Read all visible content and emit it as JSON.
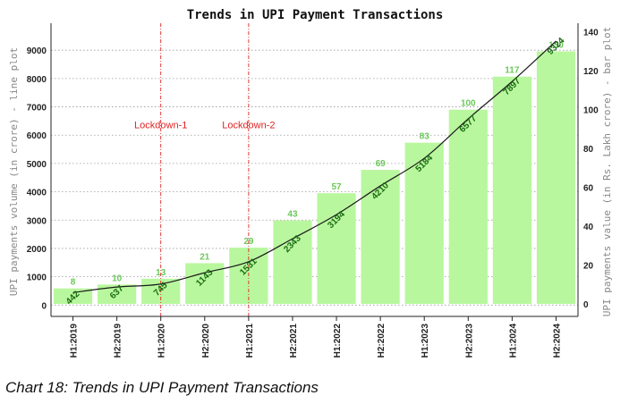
{
  "caption": "Chart 18: Trends in UPI Payment Transactions",
  "chart_data": {
    "type": "bar",
    "title": "Trends in UPI Payment Transactions",
    "categories": [
      "H1:2019",
      "H2:2019",
      "H1:2020",
      "H2:2020",
      "H1:2021",
      "H2:2021",
      "H1:2022",
      "H2:2022",
      "H1:2023",
      "H2:2023",
      "H1:2024",
      "H2:2024"
    ],
    "series": [
      {
        "name": "UPI payments value (in Rs. Lakh crore) - bar plot",
        "type": "bar",
        "axis": "right",
        "values": [
          8,
          10,
          13,
          21,
          29,
          43,
          57,
          69,
          83,
          100,
          117,
          130
        ]
      },
      {
        "name": "UPI payments volume (in crore) - line plot",
        "type": "line",
        "axis": "left",
        "values": [
          442,
          637,
          745,
          1143,
          1531,
          2343,
          3194,
          4210,
          5184,
          6577,
          7897,
          9324
        ]
      }
    ],
    "ylabel_left": "UPI payments volume (in crore) - line plot",
    "ylabel_right": "UPI payments value (in Rs. Lakh crore) - bar plot",
    "ylim_left": [
      -400,
      9700
    ],
    "ylim_right": [
      -6.4,
      140.8
    ],
    "yticks_left": [
      "0",
      "1000",
      "2000",
      "3000",
      "4000",
      "5000",
      "6000",
      "7000",
      "8000",
      "9000"
    ],
    "yticks_right": [
      "0",
      "20",
      "40",
      "60",
      "80",
      "100",
      "120",
      "140"
    ],
    "grid": true,
    "annotations": [
      {
        "text": "Lockdown-1",
        "at_category": "H1:2020"
      },
      {
        "text": "Lockdown-2",
        "at_category": "H1:2021"
      }
    ],
    "colors": {
      "bar": "#b9f79e",
      "bar_label": "#6cc85a",
      "line": "#1a1a1a",
      "line_label": "#1a6b12",
      "lockdown": "#e02222"
    }
  }
}
